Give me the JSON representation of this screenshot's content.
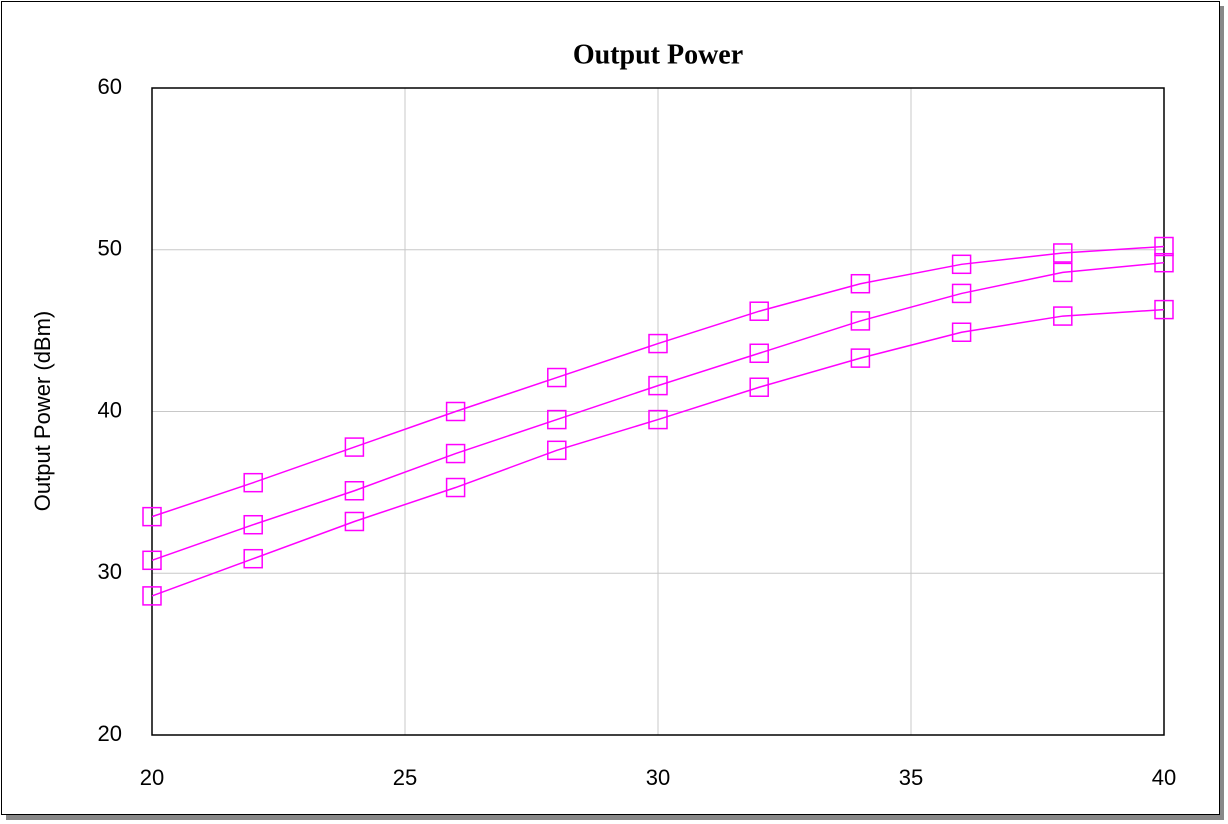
{
  "chart_data": {
    "type": "line",
    "title": "Output Power",
    "ylabel": "Output Power (dBm)",
    "x": [
      20,
      22,
      24,
      26,
      28,
      30,
      32,
      34,
      36,
      38,
      40
    ],
    "series": [
      {
        "color": "#ff00ff",
        "values": [
          33.5,
          35.6,
          37.8,
          40.0,
          42.1,
          44.2,
          46.2,
          47.9,
          49.1,
          49.8,
          50.2
        ]
      },
      {
        "color": "#ff00ff",
        "values": [
          30.8,
          33.0,
          35.1,
          37.4,
          39.5,
          41.6,
          43.6,
          45.6,
          47.3,
          48.6,
          49.2
        ]
      },
      {
        "color": "#ff00ff",
        "values": [
          28.6,
          30.9,
          33.2,
          35.3,
          37.6,
          39.5,
          41.5,
          43.3,
          44.9,
          45.9,
          46.3
        ]
      }
    ],
    "xlim": [
      20,
      40
    ],
    "xticks": [
      20,
      25,
      30,
      35,
      40
    ],
    "ylim": [
      20,
      60
    ],
    "yticks": [
      20,
      30,
      40,
      50,
      60
    ],
    "grid": true,
    "marker": "square"
  }
}
